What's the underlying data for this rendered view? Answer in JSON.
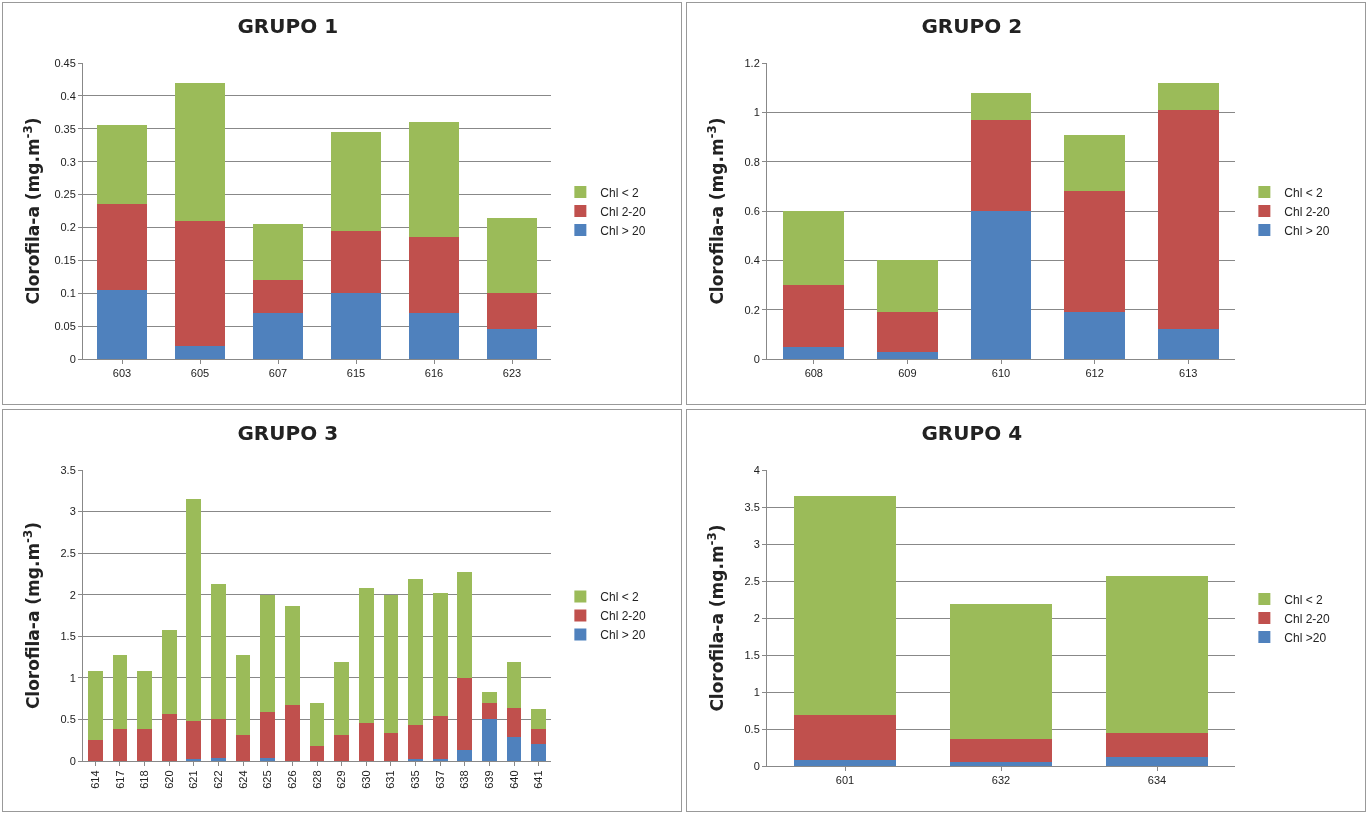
{
  "chart_data": [
    {
      "type": "bar",
      "stacked": true,
      "title": "GRUPO 1",
      "ylabel": "Clorofila-a (mg.m$^{-3}$)",
      "categories": [
        "603",
        "605",
        "607",
        "615",
        "616",
        "623"
      ],
      "ylim": [
        0,
        0.45
      ],
      "yticks": [
        0,
        0.05,
        0.1,
        0.15,
        0.2,
        0.25,
        0.3,
        0.35,
        0.4,
        0.45
      ],
      "grid": "y",
      "legend": "right",
      "series": [
        {
          "name": "Chl > 20",
          "color": "#4f81bd",
          "values": [
            0.105,
            0.02,
            0.07,
            0.1,
            0.07,
            0.045
          ]
        },
        {
          "name": "Chl 2-20",
          "color": "#c0504d",
          "values": [
            0.13,
            0.19,
            0.05,
            0.095,
            0.115,
            0.055
          ]
        },
        {
          "name": "Chl < 2",
          "color": "#9bbb59",
          "values": [
            0.12,
            0.21,
            0.085,
            0.15,
            0.175,
            0.115
          ]
        }
      ]
    },
    {
      "type": "bar",
      "stacked": true,
      "title": "GRUPO 2",
      "ylabel": "Clorofila-a (mg.m$^{-3}$)",
      "categories": [
        "608",
        "609",
        "610",
        "612",
        "613"
      ],
      "ylim": [
        0,
        1.2
      ],
      "yticks": [
        0,
        0.2,
        0.4,
        0.6,
        0.8,
        1,
        1.2
      ],
      "grid": "y",
      "legend": "right",
      "series": [
        {
          "name": "Chl > 20",
          "color": "#4f81bd",
          "values": [
            0.05,
            0.03,
            0.6,
            0.19,
            0.12
          ]
        },
        {
          "name": "Chl 2-20",
          "color": "#c0504d",
          "values": [
            0.25,
            0.16,
            0.37,
            0.49,
            0.89
          ]
        },
        {
          "name": "Chl < 2",
          "color": "#9bbb59",
          "values": [
            0.3,
            0.21,
            0.11,
            0.23,
            0.11
          ]
        }
      ]
    },
    {
      "type": "bar",
      "stacked": true,
      "title": "GRUPO 3",
      "ylabel": "Clorofila-a (mg.m$^{-3}$)",
      "categories": [
        "614",
        "617",
        "618",
        "620",
        "621",
        "622",
        "624",
        "625",
        "626",
        "628",
        "629",
        "630",
        "631",
        "635",
        "637",
        "638",
        "639",
        "640",
        "641"
      ],
      "ylim": [
        0,
        3.5
      ],
      "yticks": [
        0,
        0.5,
        1,
        1.5,
        2,
        2.5,
        3,
        3.5
      ],
      "grid": "y",
      "legend": "right",
      "series": [
        {
          "name": "Chl > 20",
          "color": "#4f81bd",
          "values": [
            null,
            null,
            null,
            null,
            0.03,
            0.04,
            null,
            0.04,
            null,
            null,
            null,
            null,
            null,
            0.03,
            0.02,
            0.13,
            0.5,
            0.29,
            0.21
          ]
        },
        {
          "name": "Chl 2-20",
          "color": "#c0504d",
          "values": [
            0.25,
            0.39,
            0.39,
            0.56,
            0.45,
            0.46,
            0.31,
            0.55,
            0.67,
            0.18,
            0.31,
            0.46,
            0.34,
            0.4,
            0.52,
            0.87,
            0.2,
            0.35,
            0.18
          ]
        },
        {
          "name": "Chl < 2",
          "color": "#9bbb59",
          "values": [
            0.83,
            0.88,
            0.69,
            1.02,
            2.67,
            1.63,
            0.96,
            1.41,
            1.19,
            0.52,
            0.88,
            1.62,
            1.66,
            1.76,
            1.48,
            1.27,
            0.13,
            0.55,
            0.23
          ]
        }
      ]
    },
    {
      "type": "bar",
      "stacked": true,
      "title": "GRUPO 4",
      "ylabel": "Clorofila-a (mg.m$^{-3}$)",
      "categories": [
        "601",
        "632",
        "634"
      ],
      "ylim": [
        0,
        4
      ],
      "yticks": [
        0,
        0.5,
        1,
        1.5,
        2,
        2.5,
        3,
        3.5,
        4
      ],
      "grid": "y",
      "legend": "right",
      "series": [
        {
          "name": "Chl >20",
          "color": "#4f81bd",
          "values": [
            0.08,
            0.05,
            0.12
          ]
        },
        {
          "name": "Chl 2-20",
          "color": "#c0504d",
          "values": [
            0.61,
            0.32,
            0.32
          ]
        },
        {
          "name": "Chl < 2",
          "color": "#9bbb59",
          "values": [
            2.96,
            1.82,
            2.13
          ]
        }
      ]
    }
  ]
}
